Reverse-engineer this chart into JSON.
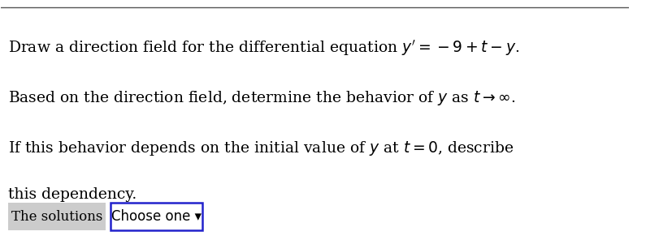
{
  "label_text": "The solutions",
  "button_text": "Choose one ▾",
  "bg_color": "#ffffff",
  "top_line_color": "#555555",
  "label_bg": "#cccccc",
  "button_border": "#2222cc",
  "text_color": "#000000",
  "font_size": 13.5,
  "small_font_size": 12
}
